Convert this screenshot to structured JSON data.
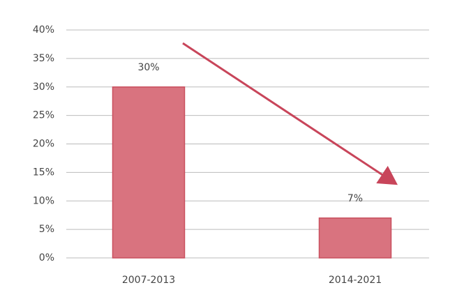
{
  "chart_data": {
    "type": "bar",
    "categories": [
      "2007-2013",
      "2014-2021"
    ],
    "values": [
      30,
      7
    ],
    "value_labels": [
      "30%",
      "7%"
    ],
    "color": "#d9737f",
    "ylim": [
      0,
      40
    ],
    "yticks": [
      {
        "value": 0,
        "label": "0%"
      },
      {
        "value": 5,
        "label": "5%"
      },
      {
        "value": 10,
        "label": "10%"
      },
      {
        "value": 15,
        "label": "15%"
      },
      {
        "value": 20,
        "label": "20%"
      },
      {
        "value": 25,
        "label": "25%"
      },
      {
        "value": 30,
        "label": "30%"
      },
      {
        "value": 35,
        "label": "35%"
      },
      {
        "value": 40,
        "label": "40%"
      }
    ],
    "grid": true
  }
}
